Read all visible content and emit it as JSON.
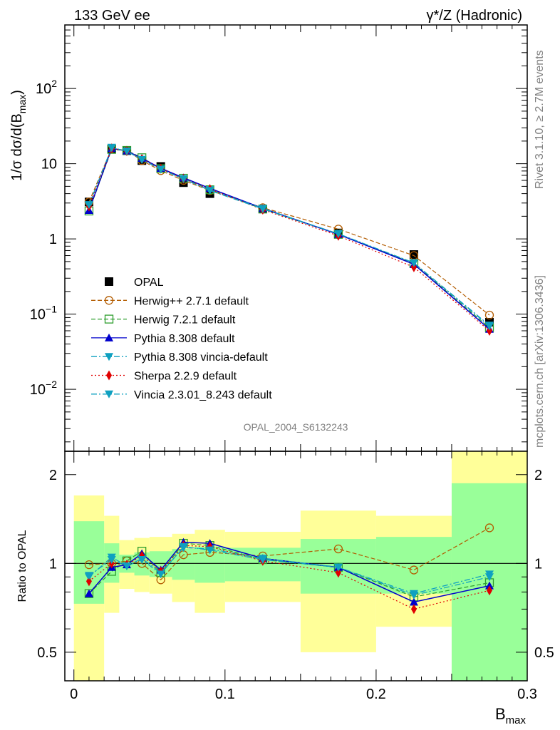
{
  "header": {
    "left": "133 GeV ee",
    "right": "γ*/Z (Hadronic)"
  },
  "side_text": {
    "rivet": "Rivet 3.1.10, ≥ 2.7M events",
    "mcplots": "mcplots.cern.ch [arXiv:1306.3436]"
  },
  "analysis_label": "OPAL_2004_S6132243",
  "chart_data": [
    {
      "type": "line",
      "panel": "main",
      "ylabel": "1/σ dσ/d(B_max)",
      "yscale": "log",
      "ylim": [
        0.0015,
        700
      ],
      "xlim": [
        -0.006,
        0.3
      ],
      "yticks": [
        {
          "value": 0.01,
          "base": "10",
          "exp": "−2"
        },
        {
          "value": 0.1,
          "base": "10",
          "exp": "−1"
        },
        {
          "value": 1,
          "base": "1",
          "exp": ""
        },
        {
          "value": 10,
          "base": "10",
          "exp": ""
        },
        {
          "value": 100,
          "base": "10",
          "exp": "2"
        }
      ],
      "x": [
        0.01,
        0.025,
        0.035,
        0.045,
        0.0575,
        0.0725,
        0.09,
        0.125,
        0.175,
        0.225,
        0.275
      ],
      "series": [
        {
          "name": "OPAL",
          "color": "#000000",
          "marker": "square-filled",
          "line": "none",
          "values": [
            3.1,
            15.7,
            14.9,
            11.0,
            9.2,
            5.6,
            4.0,
            2.5,
            1.2,
            0.62,
            0.078
          ]
        },
        {
          "name": "Herwig++ 2.7.1 default",
          "color": "#b35c00",
          "marker": "circle-open",
          "line": "dashed",
          "values": [
            3.1,
            16.0,
            15.0,
            11.0,
            8.1,
            6.0,
            4.4,
            2.6,
            1.35,
            0.6,
            0.097
          ]
        },
        {
          "name": "Herwig 7.2.1 default",
          "color": "#2e9e2e",
          "marker": "square-open",
          "line": "dashed",
          "values": [
            2.35,
            15.5,
            15.0,
            12.0,
            8.6,
            6.4,
            4.5,
            2.5,
            1.15,
            0.47,
            0.066
          ]
        },
        {
          "name": "Pythia 8.308 default",
          "color": "#0000cc",
          "marker": "triangle-up",
          "line": "solid",
          "values": [
            2.4,
            16.0,
            14.8,
            11.8,
            8.7,
            6.5,
            4.7,
            2.55,
            1.15,
            0.46,
            0.063
          ]
        },
        {
          "name": "Pythia 8.308 vincia-default",
          "color": "#0fa0c0",
          "marker": "triangle-down",
          "line": "dashdot",
          "values": [
            2.8,
            16.5,
            14.6,
            11.4,
            8.5,
            6.2,
            4.5,
            2.55,
            1.17,
            0.48,
            0.071
          ]
        },
        {
          "name": "Sherpa 2.2.9 default",
          "color": "#e00000",
          "marker": "diamond",
          "line": "dotted",
          "values": [
            2.7,
            16.0,
            14.7,
            11.5,
            8.6,
            6.3,
            4.6,
            2.45,
            1.1,
            0.42,
            0.06
          ]
        },
        {
          "name": "Vincia 2.3.01_8.243 default",
          "color": "#0fa0c0",
          "marker": "triangle-down",
          "line": "dashdot",
          "values": [
            2.85,
            16.3,
            14.7,
            11.3,
            8.4,
            6.3,
            4.4,
            2.5,
            1.17,
            0.48,
            0.069
          ]
        }
      ]
    },
    {
      "type": "line",
      "panel": "ratio",
      "ylabel": "Ratio to OPAL",
      "xlabel": "B_max",
      "yscale": "log",
      "ylim": [
        0.4,
        2.4
      ],
      "xlim": [
        -0.006,
        0.3
      ],
      "xticks": [
        0,
        0.1,
        0.2,
        0.3
      ],
      "xtick_labels": [
        "0",
        "0.1",
        "0.2",
        "0.3"
      ],
      "yticks": [
        0.5,
        1,
        2
      ],
      "ytick_labels": [
        "0.5",
        "1",
        "2"
      ],
      "bands": [
        {
          "x0": 0.0,
          "x1": 0.02,
          "green": [
            0.73,
            1.39
          ],
          "yellow": [
            0.3,
            1.7
          ]
        },
        {
          "x0": 0.02,
          "x1": 0.03,
          "green": [
            0.86,
            1.17
          ],
          "yellow": [
            0.68,
            1.45
          ]
        },
        {
          "x0": 0.03,
          "x1": 0.04,
          "green": [
            0.93,
            1.07
          ],
          "yellow": [
            0.82,
            1.2
          ]
        },
        {
          "x0": 0.04,
          "x1": 0.05,
          "green": [
            0.91,
            1.09
          ],
          "yellow": [
            0.8,
            1.22
          ]
        },
        {
          "x0": 0.05,
          "x1": 0.065,
          "green": [
            0.9,
            1.1
          ],
          "yellow": [
            0.79,
            1.23
          ]
        },
        {
          "x0": 0.065,
          "x1": 0.08,
          "green": [
            0.88,
            1.12
          ],
          "yellow": [
            0.74,
            1.26
          ]
        },
        {
          "x0": 0.08,
          "x1": 0.1,
          "green": [
            0.86,
            1.14
          ],
          "yellow": [
            0.68,
            1.3
          ]
        },
        {
          "x0": 0.1,
          "x1": 0.15,
          "green": [
            0.87,
            1.13
          ],
          "yellow": [
            0.74,
            1.28
          ]
        },
        {
          "x0": 0.15,
          "x1": 0.2,
          "green": [
            0.79,
            1.21
          ],
          "yellow": [
            0.5,
            1.51
          ]
        },
        {
          "x0": 0.2,
          "x1": 0.25,
          "green": [
            0.79,
            1.23
          ],
          "yellow": [
            0.61,
            1.45
          ]
        },
        {
          "x0": 0.25,
          "x1": 0.3,
          "green": [
            0.3,
            1.87
          ],
          "yellow": [
            0.3,
            2.5
          ]
        }
      ],
      "reference_line": 1,
      "series": [
        {
          "name": "Herwig++ 2.7.1 default",
          "values": [
            0.99,
            1.0,
            1.02,
            1.0,
            0.88,
            1.07,
            1.09,
            1.06,
            1.12,
            0.95,
            1.32
          ]
        },
        {
          "name": "Herwig 7.2.1 default",
          "values": [
            0.79,
            0.94,
            1.02,
            1.1,
            0.93,
            1.17,
            1.15,
            1.03,
            0.97,
            0.77,
            0.86
          ]
        },
        {
          "name": "Pythia 8.308 default",
          "values": [
            0.79,
            0.97,
            0.99,
            1.08,
            0.95,
            1.18,
            1.17,
            1.04,
            0.97,
            0.74,
            0.84
          ]
        },
        {
          "name": "Pythia 8.308 vincia-default",
          "values": [
            0.9,
            1.05,
            0.98,
            1.04,
            0.93,
            1.13,
            1.12,
            1.04,
            0.97,
            0.79,
            0.92
          ]
        },
        {
          "name": "Sherpa 2.2.9 default",
          "values": [
            0.87,
            1.0,
            0.99,
            1.06,
            0.94,
            1.15,
            1.14,
            1.02,
            0.93,
            0.7,
            0.81
          ]
        },
        {
          "name": "Vincia 2.3.01_8.243 default",
          "values": [
            0.91,
            1.03,
            0.98,
            1.03,
            0.92,
            1.14,
            1.11,
            1.03,
            0.97,
            0.78,
            0.9
          ]
        }
      ]
    }
  ]
}
